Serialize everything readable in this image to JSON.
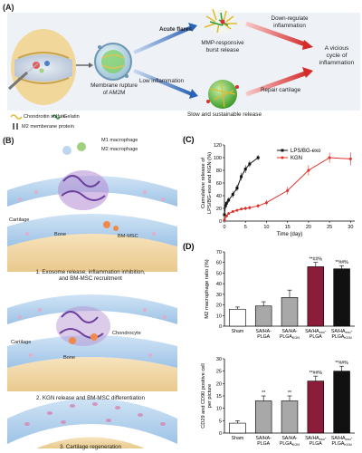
{
  "panelA": {
    "label": "(A)",
    "membrane_rupture": "Membrane rupture of AM2M",
    "acute_flares": "Acute flares",
    "low_inflammation": "Low inflammation",
    "mmp_release_1": "MMP-responsive",
    "mmp_release_2": "burst release",
    "slow_release": "Slow and sustainable release",
    "down_regulate_1": "Down-regulate",
    "down_regulate_2": "inflammation",
    "repair_cartilage": "Repair cartilage",
    "vicious_cycle_1": "A vicious",
    "vicious_cycle_2": "cycle of",
    "vicious_cycle_3": "inflammation",
    "legend_chondroitin": "Chondroitin sulfate",
    "legend_gelatin": "Gelatin",
    "legend_m2_protein": "M2 memberane protein"
  },
  "panelB": {
    "label": "(B)",
    "m1_macrophage": "M1 macrophage",
    "m2_macrophage": "M2 macrophage",
    "cartilage_1": "Cartilage",
    "bone_1": "Bone",
    "bm_msc": "BM-MSC",
    "step1_line1": "1. Exosome release, inflammation inhibition,",
    "step1_line2": "and BM-MSC recruitment",
    "cartilage_2": "Cartilage",
    "chondrocyte": "Chondrocyte",
    "bone_2": "Bone",
    "step2": "2. KGN release and BM-MSC differentiation",
    "step3": "3. Cartilage regeneration"
  },
  "colors": {
    "red": "#e0302a",
    "black": "#111111",
    "maroon": "#8b1c3a",
    "gray": "#a8a8a8",
    "white": "#ffffff"
  },
  "chart_data": [
    {
      "panel": "(C)",
      "type": "line",
      "ylabel_line1": "Cumulative release of",
      "ylabel_line2": "LPS/BG-exo and KGN (%)",
      "xlabel": "Time (day)",
      "xlim": [
        0,
        31
      ],
      "ylim": [
        0,
        120
      ],
      "xticks": [
        0,
        5,
        10,
        15,
        20,
        25,
        30
      ],
      "yticks": [
        0,
        20,
        40,
        60,
        80,
        100,
        120
      ],
      "series": [
        {
          "name": "LPS/BG-exo",
          "color": "#111111",
          "marker": "square",
          "x": [
            0,
            0.25,
            0.5,
            1,
            2,
            3,
            4,
            5,
            6,
            8
          ],
          "y": [
            10,
            24,
            28,
            33,
            42,
            52,
            70,
            82,
            90,
            100
          ],
          "err": [
            2,
            4,
            4,
            4,
            5,
            5,
            6,
            6,
            5,
            4
          ]
        },
        {
          "name": "KGN",
          "color": "#e0302a",
          "marker": "circle",
          "x": [
            0,
            0.5,
            1,
            2,
            3,
            4,
            5,
            6,
            8,
            10,
            15,
            20,
            25,
            30
          ],
          "y": [
            2,
            8,
            12,
            15,
            17,
            19,
            20,
            21,
            24,
            29,
            48,
            80,
            100,
            98
          ],
          "err": [
            1,
            2,
            2,
            2,
            2,
            2,
            3,
            3,
            3,
            4,
            6,
            8,
            8,
            10
          ]
        }
      ]
    },
    {
      "panel": "(D)",
      "type": "bar",
      "ylabel": "M2 macrophage ratio (%)",
      "ylim": [
        0,
        70
      ],
      "yticks": [
        0,
        10,
        20,
        30,
        40,
        50,
        60,
        70
      ],
      "categories": [
        "Sham",
        "SA/HA-PLGA",
        "SA/HA-PLGA_KGN",
        "SA/HA_exo-PLGA",
        "SA/HA_exo-PLGA_KGN"
      ],
      "values": [
        16,
        19,
        27,
        56,
        54
      ],
      "errors": [
        2,
        4,
        7,
        4,
        3
      ],
      "bar_colors": [
        "#ffffff",
        "#a8a8a8",
        "#a8a8a8",
        "#8b1c3a",
        "#111111"
      ],
      "annotations": [
        "",
        "",
        "",
        "**##%",
        "**##%"
      ]
    },
    {
      "panel": "(D)",
      "type": "bar",
      "ylabel_line1": "CD29 and CD90 positive cell",
      "ylabel_line2": "per picture",
      "ylim": [
        0,
        30
      ],
      "yticks": [
        0,
        5,
        10,
        15,
        20,
        25,
        30
      ],
      "categories": [
        "Sham",
        "SA/HA-PLGA",
        "SA/HA-PLGA_KGN",
        "SA/HA_exo-PLGA",
        "SA/HA_exo-PLGA_KGN"
      ],
      "values": [
        4,
        13,
        13,
        21,
        25
      ],
      "errors": [
        1,
        2,
        2,
        2,
        2
      ],
      "bar_colors": [
        "#ffffff",
        "#a8a8a8",
        "#a8a8a8",
        "#8b1c3a",
        "#111111"
      ],
      "annotations": [
        "",
        "**",
        "**",
        "**##%",
        "**##%"
      ]
    }
  ],
  "tick_labels": {
    "sham": "Sham",
    "sa_ha": "SA/HA-",
    "sa_ha_exo": "SA/HA",
    "exo": "exo",
    "dash": "-",
    "plga": "PLGA",
    "kgn": "KGN"
  }
}
